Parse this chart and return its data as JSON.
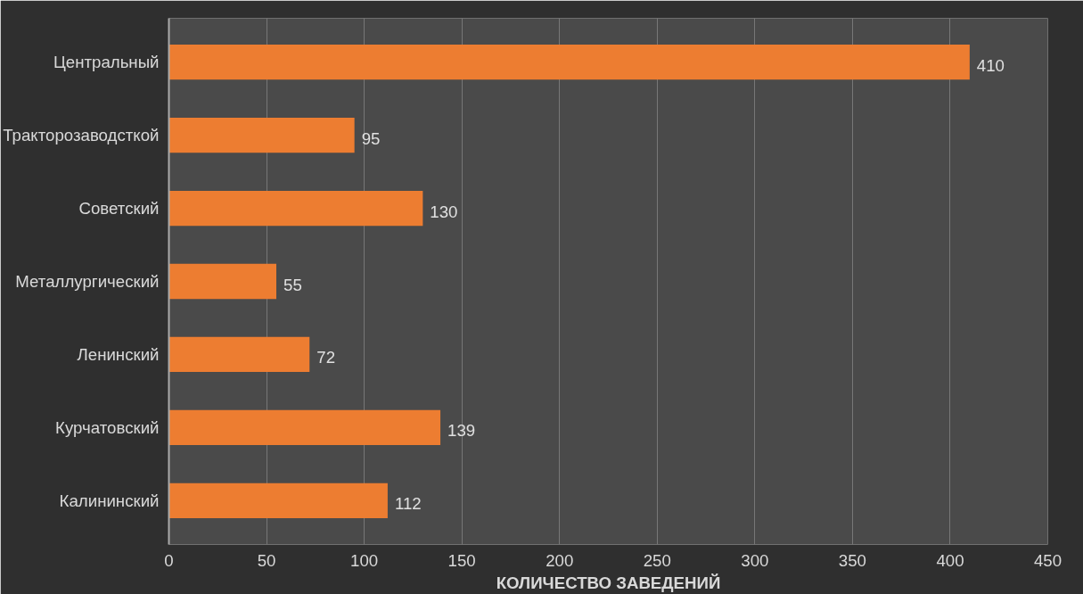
{
  "chart_data": {
    "type": "bar",
    "orientation": "horizontal",
    "xlabel": "КОЛИЧЕСТВО ЗАВЕДЕНИЙ",
    "categories": [
      "Центральный",
      "Тракторозаводсткой",
      "Советский",
      "Металлургический",
      "Ленинский",
      "Курчатовский",
      "Калининский"
    ],
    "values": [
      410,
      95,
      130,
      55,
      72,
      139,
      112
    ],
    "color": "#ed7d31",
    "xlim": [
      0,
      450
    ],
    "xticks": [
      0,
      50,
      100,
      150,
      200,
      250,
      300,
      350,
      400,
      450
    ],
    "grid": "x",
    "data_labels": true
  }
}
